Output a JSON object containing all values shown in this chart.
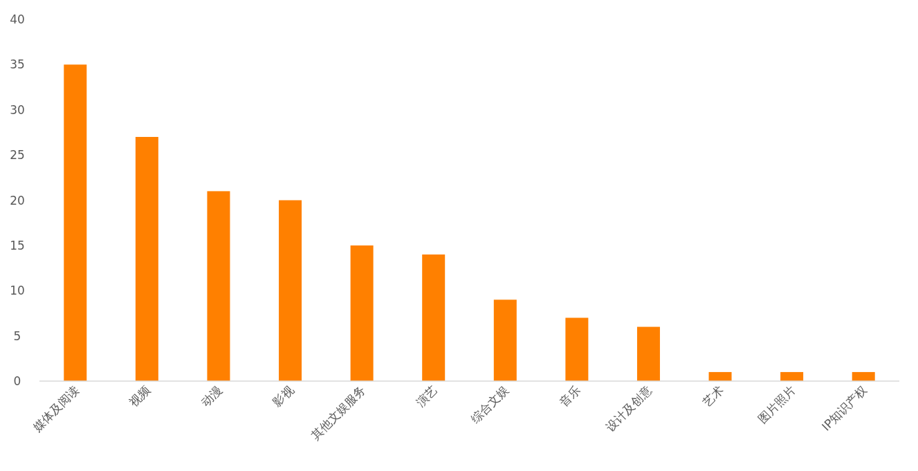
{
  "chart_data": {
    "type": "bar",
    "categories": [
      "媒体及阅读",
      "视频",
      "动漫",
      "影视",
      "其他文娱服务",
      "演艺",
      "综合文娱",
      "音乐",
      "设计及创意",
      "艺术",
      "图片照片",
      "IP知识产权"
    ],
    "values": [
      35,
      27,
      21,
      20,
      15,
      14,
      9,
      7,
      6,
      1,
      1,
      1
    ],
    "color": "#ff8000",
    "ylim": [
      0,
      40
    ],
    "yticks": [
      0,
      5,
      10,
      15,
      20,
      25,
      30,
      35,
      40
    ]
  }
}
